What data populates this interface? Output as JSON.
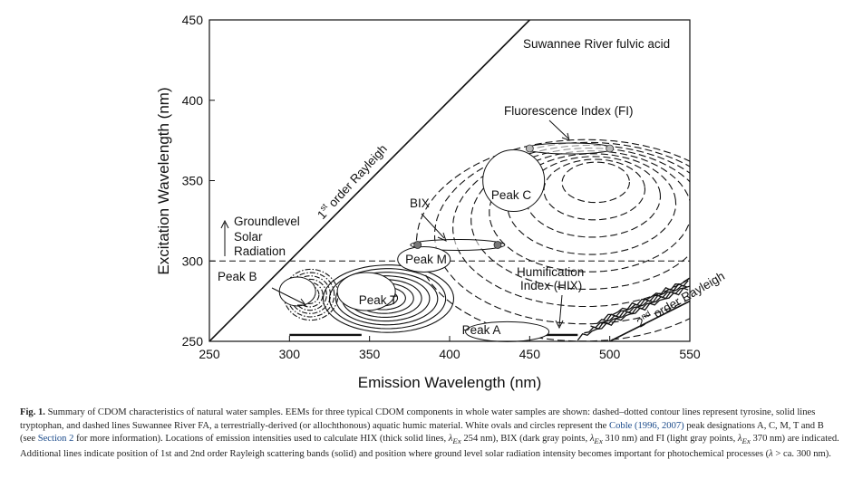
{
  "chart_data": {
    "type": "contour",
    "xlabel": "Emission Wavelength (nm)",
    "ylabel": "Excitation Wavelength (nm)",
    "xlim": [
      250,
      550
    ],
    "ylim": [
      250,
      450
    ],
    "xticks": [
      "250",
      "300",
      "350",
      "400",
      "450",
      "500",
      "550"
    ],
    "yticks": [
      "250",
      "300",
      "350",
      "400",
      "450"
    ],
    "grid": false,
    "annotations": {
      "srfa": "Suwannee River fulvic acid",
      "fi": "Fluorescence Index (FI)",
      "bix": "BIX",
      "peak_c": "Peak C",
      "peak_m": "Peak M",
      "peak_t": "Peak T",
      "peak_b": "Peak B",
      "peak_a": "Peak A",
      "hix_line1": "Humification",
      "hix_line2": "Index (HIX)",
      "solar_line1": "Groundlevel",
      "solar_line2": "Solar",
      "solar_line3": "Radiation",
      "rayleigh1_pre": "1",
      "rayleigh1_sup": "st",
      "rayleigh1_post": " order Rayleigh",
      "rayleigh2_pre": "2",
      "rayleigh2_sup": "nd",
      "rayleigh2_post": " order Rayleigh"
    },
    "peaks": [
      {
        "name": "Peak C",
        "em": 440,
        "ex": 350
      },
      {
        "name": "Peak M",
        "em": 384,
        "ex": 301
      },
      {
        "name": "Peak T",
        "em": 348,
        "ex": 281
      },
      {
        "name": "Peak B",
        "em": 305,
        "ex": 281
      },
      {
        "name": "Peak A",
        "em": 436,
        "ex": 256
      }
    ],
    "fi_points": [
      {
        "em": 450,
        "ex": 370
      },
      {
        "em": 500,
        "ex": 370
      }
    ],
    "bix_points": [
      {
        "em": 380,
        "ex": 310
      },
      {
        "em": 430,
        "ex": 310
      }
    ],
    "solar_threshold_ex": 300
  },
  "caption": {
    "label": "Fig. 1.",
    "t1": " Summary of CDOM characteristics of natural water samples. EEMs for three typical CDOM components in whole water samples are shown: dashed–dotted contour lines represent tyrosine, solid lines tryptophan, and dashed lines Suwannee River FA, a terrestrially-derived (or allochthonous) aquatic humic material. White ovals and circles represent the ",
    "ref1": "Coble (1996, 2007)",
    "t2": " peak designations A, C, M, T and B (see ",
    "ref2": "Section 2",
    "t3": " for more information). Locations of emission intensities used to calculate HIX (thick solid lines, ",
    "ex_sym1": "λ",
    "ex_sub1": "Ex",
    "t4": " 254 nm), BIX (dark gray points, ",
    "ex_sym2": "λ",
    "ex_sub2": "Ex",
    "t5": " 310 nm) and FI (light gray points, ",
    "ex_sym3": "λ",
    "ex_sub3": "Ex",
    "t6": " 370 nm) are indicated. Additional lines indicate position of 1st and 2nd order Rayleigh scattering bands (solid) and position where ground level solar radiation intensity becomes important for photochemical processes (",
    "ex_sym4": "λ",
    "t7": " > ca. 300 nm)."
  }
}
